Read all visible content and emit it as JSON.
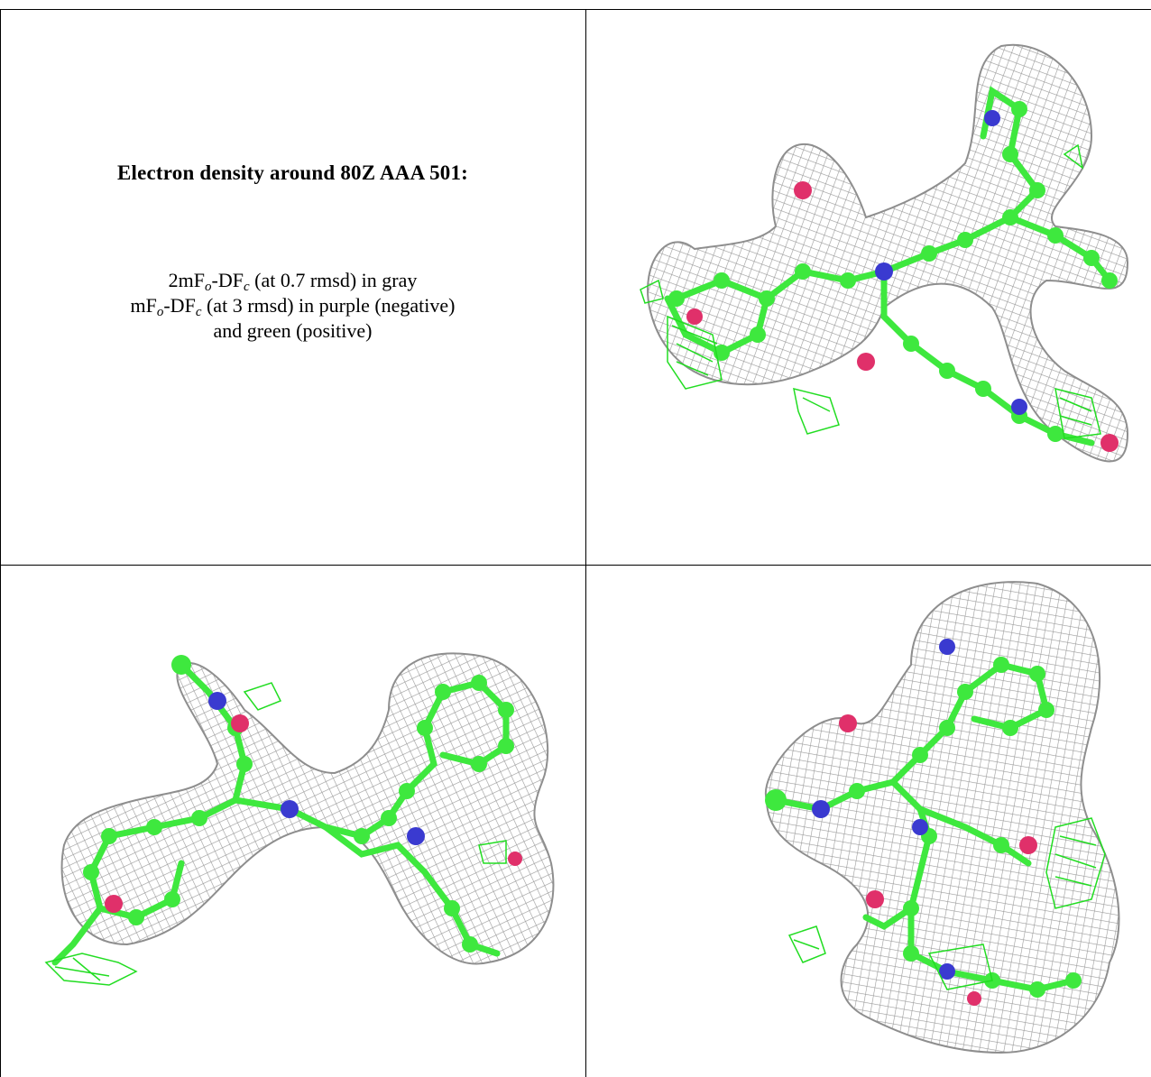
{
  "title": "Electron density around 80Z AAA 501:",
  "legend": {
    "line1": {
      "a": "2mF",
      "a_sub": "o",
      "b": "-DF",
      "b_sub": "c",
      "rest": " (at 0.7 rmsd) in gray"
    },
    "line2": {
      "a": "mF",
      "a_sub": "o",
      "b": "-DF",
      "b_sub": "c",
      "rest": " (at 3 rmsd) in purple (negative)"
    },
    "line3": "and green (positive)"
  },
  "colors": {
    "mesh_gray": "#9a9a9a",
    "carbon_green": "#3ee83e",
    "nitrogen_blue": "#3a3ad0",
    "oxygen_red": "#e0306a",
    "positive_green": "#22dd22",
    "negative_purple": "#c040c0"
  }
}
